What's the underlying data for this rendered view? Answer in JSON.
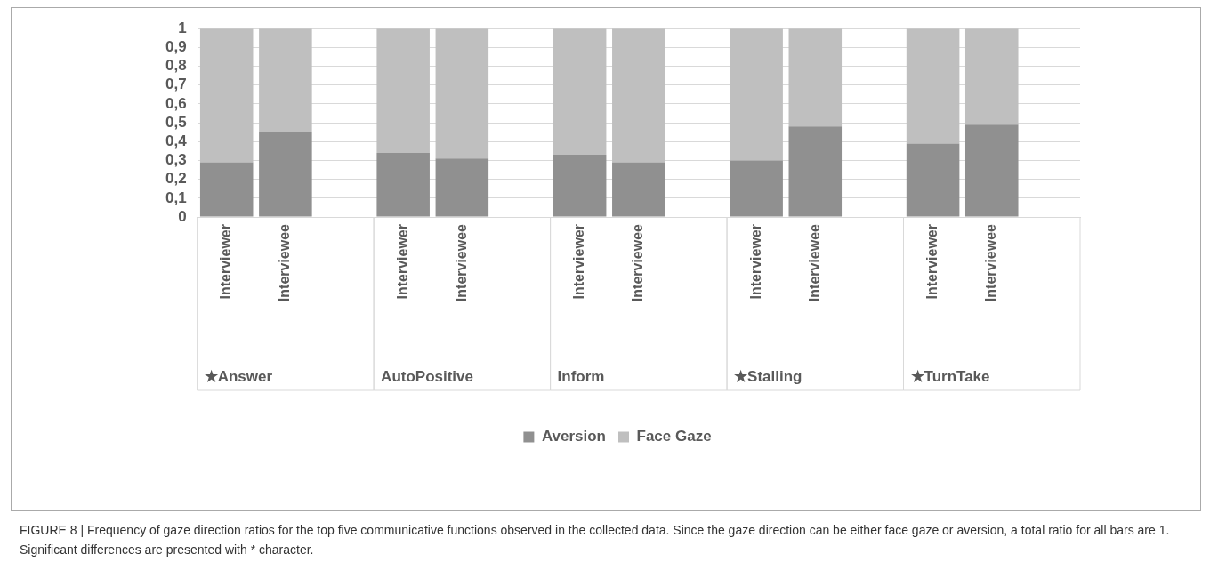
{
  "chart_data": {
    "type": "bar",
    "stacked": true,
    "categories": [
      "Interviewer",
      "Interviewee",
      null,
      "Interviewer",
      "Interviewee",
      null,
      "Interviewer",
      "Interviewee",
      null,
      "Interviewer",
      "Interviewee",
      null,
      "Interviewer",
      "Interviewee",
      null
    ],
    "series": [
      {
        "name": "Aversion",
        "color": "#909090",
        "values": [
          0.29,
          0.45,
          null,
          0.34,
          0.31,
          null,
          0.33,
          0.29,
          null,
          0.3,
          0.48,
          null,
          0.39,
          0.49,
          null
        ]
      },
      {
        "name": "Face Gaze",
        "color": "#bfbfbf",
        "values": [
          0.71,
          0.55,
          null,
          0.66,
          0.69,
          null,
          0.67,
          0.71,
          null,
          0.7,
          0.52,
          null,
          0.61,
          0.51,
          null
        ]
      }
    ],
    "ylim": [
      0,
      1
    ],
    "yticks": [
      0,
      {
        "value": 0.1,
        "label": "0,1"
      },
      {
        "value": 0.2,
        "label": "0,2"
      },
      {
        "value": 0.3,
        "label": "0,3"
      },
      {
        "value": 0.4,
        "label": "0,4"
      },
      {
        "value": 0.5,
        "label": "0,5"
      },
      {
        "value": 0.6,
        "label": "0,6"
      },
      {
        "value": 0.7,
        "label": "0,7"
      },
      {
        "value": 0.8,
        "label": "0,8"
      },
      {
        "value": 0.9,
        "label": "0,9"
      },
      1
    ],
    "grid": "y",
    "legend": "bottom",
    "annotations": [
      "★Answer",
      "AutoPositive",
      "Inform",
      "★Stalling",
      "★TurnTake",
      "FIGURE 8 | Frequency of gaze direction ratios for the top five communicative functions observed in the collected data. Since the gaze direction can be either face gaze or aversion, a total ratio for all bars are 1. Significant differences are presented with * character."
    ]
  }
}
